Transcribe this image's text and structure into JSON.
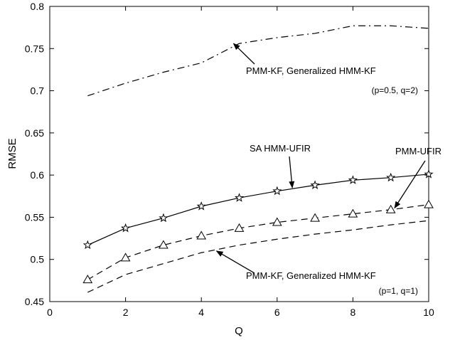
{
  "chart_data": {
    "type": "line",
    "title": "",
    "xlabel": "Q",
    "ylabel": "RMSE",
    "xlim": [
      0,
      10
    ],
    "ylim": [
      0.45,
      0.8
    ],
    "xticks": [
      0,
      2,
      4,
      6,
      8,
      10
    ],
    "yticks": [
      0.45,
      0.5,
      0.55,
      0.6,
      0.65,
      0.7,
      0.75,
      0.8
    ],
    "grid": false,
    "legend": "none (annotations with arrows)",
    "series": [
      {
        "style": "dash-dot",
        "marker": "none",
        "x": [
          1,
          2,
          3,
          4,
          5,
          6,
          7,
          8,
          9,
          10
        ],
        "values": [
          0.694,
          0.709,
          0.722,
          0.733,
          0.756,
          0.763,
          0.768,
          0.777,
          0.777,
          0.774
        ]
      },
      {
        "style": "solid",
        "marker": "star",
        "x": [
          1,
          2,
          3,
          4,
          5,
          6,
          7,
          8,
          9,
          10
        ],
        "values": [
          0.517,
          0.537,
          0.549,
          0.563,
          0.573,
          0.581,
          0.588,
          0.594,
          0.597,
          0.601
        ]
      },
      {
        "style": "dashed",
        "marker": "triangle",
        "x": [
          1,
          2,
          3,
          4,
          5,
          6,
          7,
          8,
          9,
          10
        ],
        "values": [
          0.476,
          0.502,
          0.517,
          0.528,
          0.537,
          0.544,
          0.549,
          0.554,
          0.559,
          0.565
        ]
      },
      {
        "style": "dashed",
        "marker": "none",
        "x": [
          1,
          2,
          3,
          4,
          5,
          6,
          7,
          8,
          9,
          10
        ],
        "values": [
          0.461,
          0.482,
          0.495,
          0.508,
          0.517,
          0.524,
          0.53,
          0.535,
          0.541,
          0.546
        ]
      }
    ],
    "annotations": [
      {
        "text": "PMM-KF, Generalized HMM-KF",
        "subtext": "(p=0.5, q=2)",
        "points_to": [
          4.85,
          0.756
        ]
      },
      {
        "text": "SA HMM-UFIR",
        "subtext": "",
        "points_to": [
          6.4,
          0.585
        ]
      },
      {
        "text": "PMM-UFIR",
        "subtext": "",
        "points_to": [
          9.1,
          0.561
        ]
      },
      {
        "text": "PMM-KF, Generalized HMM-KF",
        "subtext": "(p=1, q=1)",
        "points_to": [
          4.4,
          0.51
        ]
      }
    ]
  }
}
